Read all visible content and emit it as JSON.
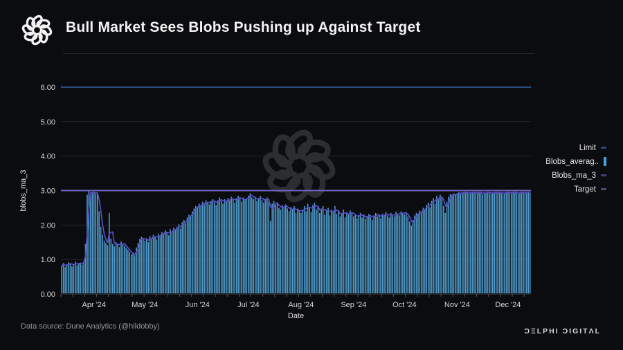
{
  "header": {
    "title": "Bull Market Sees Blobs Pushing up Against Target",
    "logo": "delphi-knot-logo"
  },
  "legend": {
    "position": "right",
    "items": [
      {
        "label": "Limit",
        "marker": "dash",
        "color": "#27497c"
      },
      {
        "label": "Blobs_averag..",
        "marker": "bar",
        "color": "#41a6e0"
      },
      {
        "label": "Blobs_ma_3",
        "marker": "dash",
        "color": "#473c82"
      },
      {
        "label": "Target",
        "marker": "dash",
        "color": "#4c4876"
      }
    ]
  },
  "footer": {
    "source": "Data source: Dune Analytics (@hildobby)",
    "brand": "ƆΞLPHI ƆIGITΛL"
  },
  "colors": {
    "background": "#0b0c0f",
    "bar": "#4f9ccd",
    "ma_line": "#5b4fc9",
    "limit_line": "#2b4c80",
    "target_line": "#6f66c4",
    "grid": "#26282c",
    "axis": "#3f434a",
    "tick": "#54575c",
    "tick_text": "#d6d6d6",
    "watermark": "#2c2d31"
  },
  "chart_data": {
    "type": "bar+line",
    "title": "Bull Market Sees Blobs Pushing up Against Target",
    "xlabel": "Date",
    "ylabel": "blobs_ma_3",
    "ylim": [
      0,
      6
    ],
    "grid": true,
    "legend_position": "right",
    "yticks": [
      "0.00",
      "1.00",
      "2.00",
      "3.00",
      "4.00",
      "5.00",
      "6.00"
    ],
    "x_months": [
      {
        "label": "Apr '24",
        "day_index": 19
      },
      {
        "label": "May '24",
        "day_index": 49
      },
      {
        "label": "Jun '24",
        "day_index": 80
      },
      {
        "label": "Jul '24",
        "day_index": 110
      },
      {
        "label": "Aug '24",
        "day_index": 141
      },
      {
        "label": "Sep '24",
        "day_index": 172
      },
      {
        "label": "Oct '24",
        "day_index": 202
      },
      {
        "label": "Nov '24",
        "day_index": 233
      },
      {
        "label": "Dec '24",
        "day_index": 263
      }
    ],
    "reference_lines": [
      {
        "name": "Limit",
        "value": 6.0
      },
      {
        "name": "Target",
        "value": 3.0
      }
    ],
    "ma_window": 3,
    "series": [
      {
        "name": "Blobs_average",
        "type": "bar",
        "values": [
          0.82,
          0.9,
          0.78,
          0.85,
          0.92,
          0.88,
          0.8,
          0.86,
          0.94,
          0.83,
          0.88,
          0.91,
          0.85,
          0.96,
          1.45,
          2.88,
          2.98,
          2.94,
          2.92,
          2.97,
          2.9,
          2.93,
          2.4,
          1.95,
          1.72,
          1.55,
          1.48,
          1.42,
          2.35,
          1.6,
          1.45,
          1.38,
          1.5,
          1.44,
          1.36,
          1.52,
          1.46,
          1.4,
          1.34,
          1.28,
          1.22,
          1.15,
          1.18,
          1.12,
          1.35,
          1.48,
          1.6,
          1.66,
          1.58,
          1.55,
          1.62,
          1.5,
          1.68,
          1.6,
          1.72,
          1.66,
          1.58,
          1.75,
          1.7,
          1.8,
          1.73,
          1.85,
          1.78,
          1.7,
          1.88,
          1.8,
          1.92,
          1.85,
          1.95,
          2.02,
          1.9,
          2.08,
          2.15,
          2.05,
          2.22,
          2.3,
          2.25,
          2.4,
          2.48,
          2.55,
          2.5,
          2.62,
          2.55,
          2.68,
          2.58,
          2.72,
          2.65,
          2.6,
          2.7,
          2.75,
          2.66,
          2.58,
          2.72,
          2.8,
          2.7,
          2.62,
          2.75,
          2.68,
          2.78,
          2.7,
          2.82,
          2.74,
          2.65,
          2.78,
          2.85,
          2.76,
          2.68,
          2.8,
          2.72,
          2.78,
          2.85,
          2.92,
          2.8,
          2.75,
          2.82,
          2.7,
          2.78,
          2.85,
          2.72,
          2.65,
          2.75,
          2.8,
          2.68,
          2.12,
          2.62,
          2.7,
          2.58,
          2.65,
          2.5,
          2.45,
          2.58,
          2.52,
          2.6,
          2.48,
          2.4,
          2.52,
          2.45,
          2.55,
          2.35,
          2.48,
          2.42,
          2.35,
          2.45,
          2.55,
          2.4,
          2.62,
          2.5,
          2.38,
          2.58,
          2.65,
          2.45,
          2.52,
          2.35,
          2.48,
          2.55,
          2.3,
          2.42,
          2.5,
          2.28,
          2.45,
          2.38,
          2.55,
          2.32,
          2.4,
          2.25,
          2.35,
          2.45,
          2.22,
          2.38,
          2.3,
          2.42,
          2.35,
          2.25,
          2.32,
          2.2,
          2.28,
          2.35,
          2.22,
          2.3,
          2.18,
          2.26,
          2.32,
          2.24,
          2.15,
          2.28,
          2.35,
          2.25,
          2.3,
          2.2,
          2.33,
          2.26,
          2.38,
          2.28,
          2.22,
          2.35,
          2.3,
          2.25,
          2.38,
          2.32,
          2.28,
          2.4,
          2.35,
          2.3,
          2.38,
          2.25,
          2.1,
          1.98,
          2.15,
          2.28,
          2.35,
          2.3,
          2.42,
          2.38,
          2.5,
          2.45,
          2.58,
          2.65,
          2.52,
          2.7,
          2.78,
          2.62,
          2.85,
          2.75,
          2.88,
          2.8,
          2.55,
          2.35,
          2.68,
          2.82,
          2.9,
          2.85,
          2.92,
          2.88,
          2.92,
          2.95,
          2.9,
          2.94,
          2.96,
          2.93,
          2.95,
          2.91,
          2.94,
          2.96,
          2.92,
          2.95,
          2.93,
          2.96,
          2.94,
          2.9,
          2.95,
          2.92,
          2.96,
          2.94,
          2.91,
          2.95,
          2.93,
          2.96,
          2.92,
          2.94,
          2.95,
          2.9,
          2.93,
          2.96,
          2.94,
          2.92,
          2.95,
          2.96,
          2.93,
          2.95,
          2.91,
          2.94,
          2.96,
          2.92,
          2.95,
          2.93,
          2.96,
          2.94
        ]
      },
      {
        "name": "Blobs_ma_3",
        "type": "line",
        "derived": "3-day moving average of Blobs_average"
      }
    ]
  }
}
